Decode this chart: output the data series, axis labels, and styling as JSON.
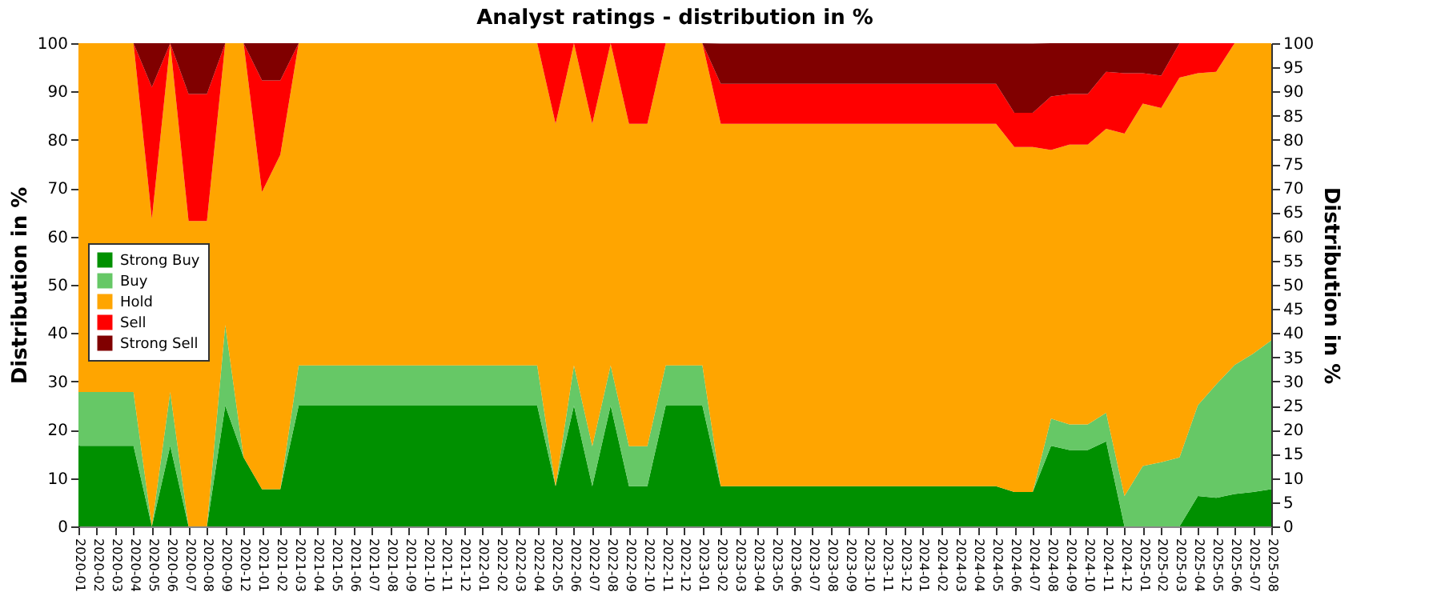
{
  "chart_data": {
    "type": "area",
    "stacked": true,
    "title": "Analyst ratings - distribution in %",
    "ylabel": "Distribution in %",
    "y2label": "Distribution in %",
    "categories": [
      "2020-01",
      "2020-02",
      "2020-03",
      "2020-04",
      "2020-05",
      "2020-06",
      "2020-07",
      "2020-08",
      "2020-09",
      "2020-12",
      "2021-01",
      "2021-02",
      "2021-03",
      "2021-04",
      "2021-05",
      "2021-06",
      "2021-07",
      "2021-08",
      "2021-09",
      "2021-10",
      "2021-11",
      "2021-12",
      "2022-01",
      "2022-02",
      "2022-03",
      "2022-04",
      "2022-05",
      "2022-06",
      "2022-07",
      "2022-08",
      "2022-09",
      "2022-10",
      "2022-11",
      "2022-12",
      "2023-01",
      "2023-02",
      "2023-03",
      "2023-04",
      "2023-05",
      "2023-06",
      "2023-07",
      "2023-08",
      "2023-09",
      "2023-10",
      "2023-11",
      "2023-12",
      "2024-01",
      "2024-02",
      "2024-03",
      "2024-04",
      "2024-05",
      "2024-06",
      "2024-07",
      "2024-08",
      "2024-09",
      "2024-10",
      "2024-11",
      "2024-12",
      "2025-01",
      "2025-02",
      "2025-03",
      "2025-04",
      "2025-05",
      "2025-06",
      "2025-07",
      "2025-08"
    ],
    "series": [
      {
        "name": "Strong Buy",
        "color": "#009000",
        "values": [
          16.7,
          16.7,
          16.7,
          16.7,
          0,
          16.7,
          0,
          0,
          25,
          14.3,
          7.7,
          7.7,
          25,
          25,
          25,
          25,
          25,
          25,
          25,
          25,
          25,
          25,
          25,
          25,
          25,
          25,
          8.3,
          25,
          8.3,
          25,
          8.3,
          8.3,
          25,
          25,
          25,
          8.3,
          8.3,
          8.3,
          8.3,
          8.3,
          8.3,
          8.3,
          8.3,
          8.3,
          8.3,
          8.3,
          8.3,
          8.3,
          8.3,
          8.3,
          8.3,
          7.1,
          7.1,
          16.7,
          15.8,
          15.8,
          17.6,
          0,
          0,
          0,
          0,
          6.3,
          5.9,
          6.7,
          7.1,
          7.7
        ]
      },
      {
        "name": "Buy",
        "color": "#66c866",
        "values": [
          11.1,
          11.1,
          11.1,
          11.1,
          0,
          11.1,
          0,
          0,
          16.7,
          0,
          0,
          0,
          8.3,
          8.3,
          8.3,
          8.3,
          8.3,
          8.3,
          8.3,
          8.3,
          8.3,
          8.3,
          8.3,
          8.3,
          8.3,
          8.3,
          0,
          8.3,
          8.3,
          8.3,
          8.3,
          8.3,
          8.3,
          8.3,
          8.3,
          0,
          0,
          0,
          0,
          0,
          0,
          0,
          0,
          0,
          0,
          0,
          0,
          0,
          0,
          0,
          0,
          0,
          0,
          5.6,
          5.3,
          5.3,
          5.9,
          6.3,
          12.5,
          13.3,
          14.3,
          18.8,
          23.5,
          26.7,
          28.6,
          30.8
        ]
      },
      {
        "name": "Hold",
        "color": "#ffa500",
        "values": [
          72.2,
          72.2,
          72.2,
          72.2,
          63.6,
          72.2,
          63.2,
          63.2,
          58.3,
          85.7,
          61.5,
          69.2,
          66.7,
          66.7,
          66.7,
          66.7,
          66.7,
          66.7,
          66.7,
          66.7,
          66.7,
          66.7,
          66.7,
          66.7,
          66.7,
          66.7,
          75,
          66.7,
          66.7,
          66.7,
          66.7,
          66.7,
          66.7,
          66.7,
          66.7,
          75,
          75,
          75,
          75,
          75,
          75,
          75,
          75,
          75,
          75,
          75,
          75,
          75,
          75,
          75,
          75,
          71.4,
          71.4,
          55.6,
          57.9,
          57.9,
          58.8,
          75,
          75,
          73.3,
          78.6,
          68.7,
          64.7,
          66.6,
          64.3,
          61.5
        ]
      },
      {
        "name": "Sell",
        "color": "#ff0000",
        "values": [
          0,
          0,
          0,
          0,
          27.3,
          0,
          26.3,
          26.3,
          0,
          0,
          23.1,
          15.4,
          0,
          0,
          0,
          0,
          0,
          0,
          0,
          0,
          0,
          0,
          0,
          0,
          0,
          0,
          16.7,
          0,
          16.7,
          0,
          16.7,
          16.7,
          0,
          0,
          0,
          8.3,
          8.3,
          8.3,
          8.3,
          8.3,
          8.3,
          8.3,
          8.3,
          8.3,
          8.3,
          8.3,
          8.3,
          8.3,
          8.3,
          8.3,
          8.3,
          7.1,
          7.1,
          11.1,
          10.5,
          10.5,
          11.8,
          12.5,
          6.3,
          6.7,
          7.1,
          6.2,
          5.9,
          0,
          0,
          0
        ]
      },
      {
        "name": "Strong Sell",
        "color": "#800000",
        "values": [
          0,
          0,
          0,
          0,
          9.1,
          0,
          10.5,
          10.5,
          0,
          0,
          7.7,
          7.7,
          0,
          0,
          0,
          0,
          0,
          0,
          0,
          0,
          0,
          0,
          0,
          0,
          0,
          0,
          0,
          0,
          0,
          0,
          0,
          0,
          0,
          0,
          0,
          8.3,
          8.3,
          8.3,
          8.3,
          8.3,
          8.3,
          8.3,
          8.3,
          8.3,
          8.3,
          8.3,
          8.3,
          8.3,
          8.3,
          8.3,
          8.3,
          14.3,
          14.3,
          11.0,
          10.5,
          10.5,
          5.9,
          6.2,
          6.2,
          6.7,
          0,
          0,
          0,
          0,
          0,
          0
        ]
      }
    ],
    "ylim": [
      0,
      100
    ],
    "yticks": [
      0,
      10,
      20,
      30,
      40,
      50,
      60,
      70,
      80,
      90,
      100
    ],
    "y2lim": [
      0,
      100
    ],
    "y2ticks": [
      0,
      5,
      10,
      15,
      20,
      25,
      30,
      35,
      40,
      45,
      50,
      55,
      60,
      65,
      70,
      75,
      80,
      85,
      90,
      95,
      100
    ],
    "grid": "y",
    "legend": "left"
  }
}
